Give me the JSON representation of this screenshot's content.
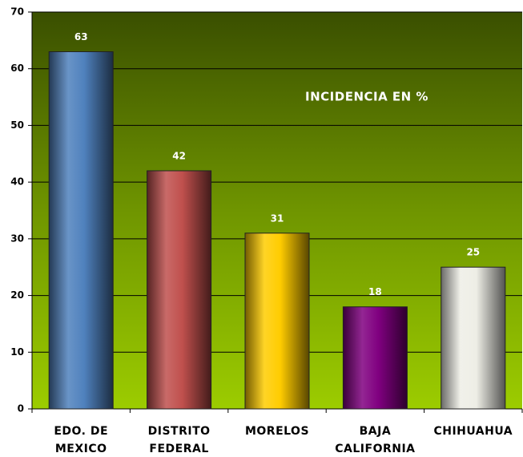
{
  "chart_data": {
    "type": "bar",
    "annotation": "INCIDENCIA EN %",
    "categories": [
      "EDO. DE MEXICO",
      "DISTRITO FEDERAL",
      "MORELOS",
      "BAJA CALIFORNIA",
      "CHIHUAHUA"
    ],
    "values": [
      63,
      42,
      31,
      18,
      25
    ],
    "colors": [
      "#4f81bd",
      "#c0504d",
      "#ffcc00",
      "#800080",
      "#eeeee6"
    ],
    "ylim": [
      0,
      70
    ],
    "yticks": [
      0,
      10,
      20,
      30,
      40,
      50,
      60,
      70
    ],
    "grid": true
  }
}
